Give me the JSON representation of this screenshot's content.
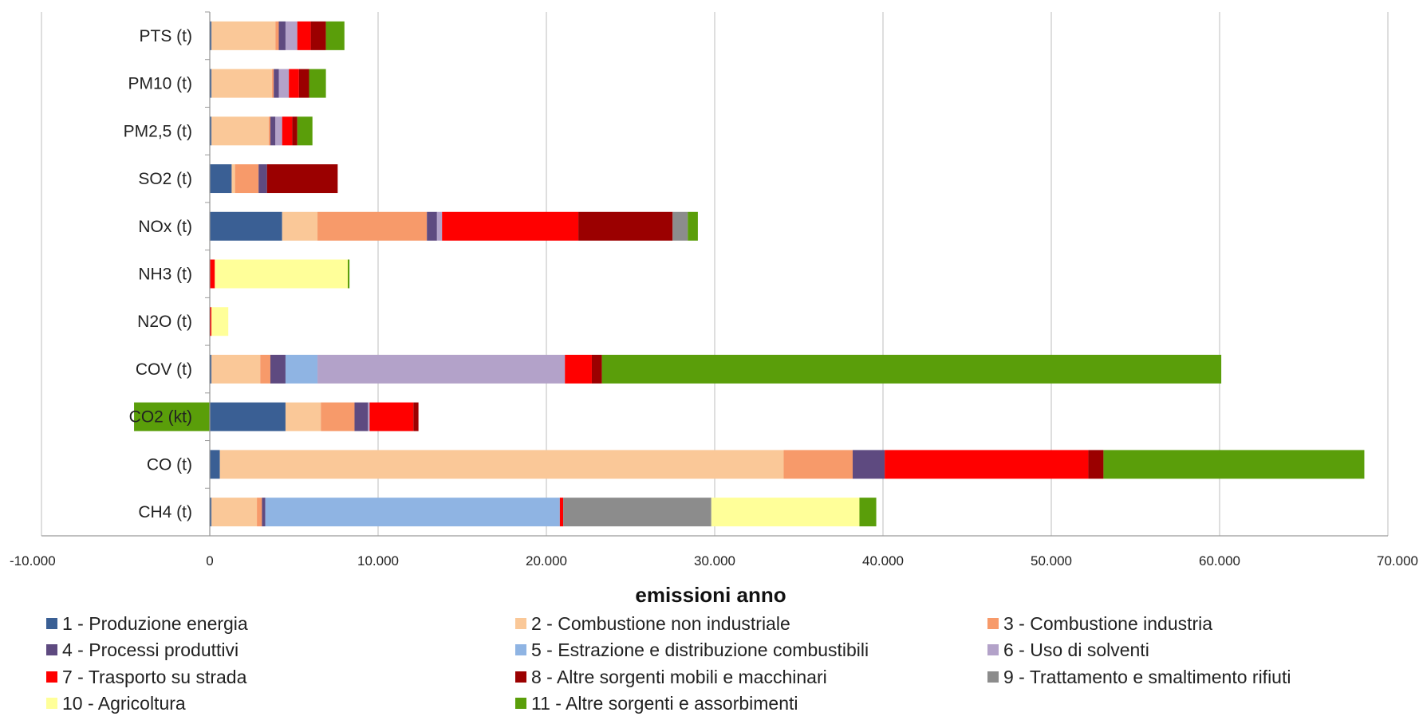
{
  "chart_data": {
    "type": "bar",
    "orientation": "horizontal",
    "stacked": true,
    "categories": [
      "PTS (t)",
      "PM10 (t)",
      "PM2,5 (t)",
      "SO2 (t)",
      "NOx (t)",
      "NH3 (t)",
      "N2O (t)",
      "COV (t)",
      "CO2 (kt)",
      "CO (t)",
      "CH4 (t)"
    ],
    "series": [
      {
        "name": "1 - Produzione energia",
        "color": "#3a5f94",
        "values": [
          100,
          100,
          100,
          1300,
          4300,
          0,
          0,
          100,
          4500,
          600,
          100
        ]
      },
      {
        "name": "2 - Combustione non industriale",
        "color": "#fac898",
        "values": [
          3800,
          3600,
          3400,
          200,
          2100,
          0,
          0,
          2900,
          2100,
          33500,
          2700
        ]
      },
      {
        "name": "3 - Combustione industria",
        "color": "#f79a6a",
        "values": [
          200,
          100,
          100,
          1400,
          6500,
          0,
          0,
          600,
          2000,
          4100,
          300
        ]
      },
      {
        "name": "4 - Processi produttivi",
        "color": "#5e4a80",
        "values": [
          400,
          300,
          300,
          500,
          600,
          0,
          0,
          900,
          800,
          1900,
          200
        ]
      },
      {
        "name": "5 - Estrazione e distribuzione combustibili",
        "color": "#8fb4e3",
        "values": [
          0,
          0,
          0,
          0,
          0,
          0,
          0,
          1900,
          0,
          0,
          17500
        ]
      },
      {
        "name": "6 - Uso di solventi",
        "color": "#b3a2c9",
        "values": [
          700,
          600,
          400,
          0,
          300,
          0,
          0,
          14700,
          100,
          0,
          0
        ]
      },
      {
        "name": "7 - Trasporto su strada",
        "color": "#ff0000",
        "values": [
          800,
          600,
          600,
          0,
          8100,
          300,
          100,
          1600,
          2600,
          12100,
          200
        ]
      },
      {
        "name": "8 - Altre sorgenti mobili e macchinari",
        "color": "#9b0000",
        "values": [
          900,
          600,
          300,
          4200,
          5600,
          0,
          0,
          600,
          300,
          900,
          0
        ]
      },
      {
        "name": "9 - Trattamento e smaltimento rifiuti",
        "color": "#8c8c8c",
        "values": [
          0,
          0,
          0,
          0,
          900,
          0,
          0,
          0,
          0,
          0,
          8800
        ]
      },
      {
        "name": "10 - Agricoltura",
        "color": "#ffff99",
        "values": [
          0,
          0,
          0,
          0,
          0,
          7900,
          1000,
          0,
          0,
          0,
          8800
        ]
      },
      {
        "name": "11 - Altre sorgenti e assorbimenti",
        "color": "#5a9e0a",
        "values": [
          1100,
          1000,
          900,
          0,
          600,
          100,
          0,
          36800,
          -4500,
          15500,
          1000
        ]
      }
    ],
    "xlim": [
      -10000,
      70000
    ],
    "xticks": [
      -10000,
      0,
      10000,
      20000,
      30000,
      40000,
      50000,
      60000,
      70000
    ],
    "xtick_labels": [
      "-10.000",
      "0",
      "10.000",
      "20.000",
      "30.000",
      "40.000",
      "50.000",
      "60.000",
      "70.000"
    ],
    "xlabel": "emissioni anno",
    "ylabel": "",
    "title": "",
    "grid": "vertical",
    "legend_position": "bottom"
  }
}
